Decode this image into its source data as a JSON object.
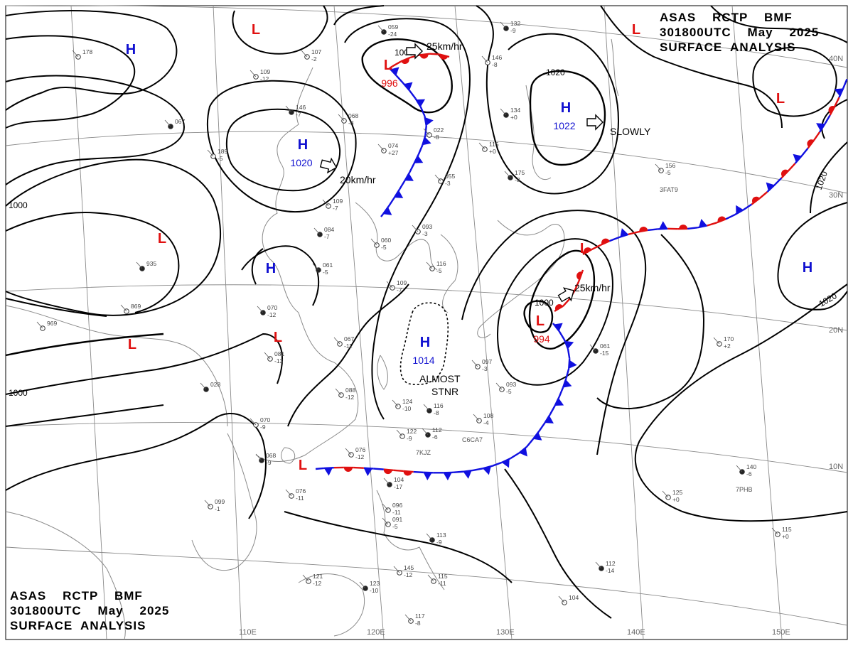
{
  "header": {
    "line1": "ASAS    RCTP    BMF",
    "line2": "301800UTC    May    2025",
    "line3": "SURFACE  ANALYSIS"
  },
  "colors": {
    "high": "#1010d0",
    "low": "#e01010",
    "warm_front": "#e01010",
    "cold_front": "#1010e0",
    "isobar": "#000000",
    "grid": "#8a8a8a",
    "coast": "#8a8a8a"
  },
  "grid_labels": {
    "lon": [
      "110E",
      "120E",
      "130E",
      "140E",
      "150E"
    ],
    "lat": [
      "40N",
      "30N",
      "20N",
      "10N"
    ]
  },
  "pressure_systems": [
    {
      "type": "H",
      "value": ""
    },
    {
      "type": "H",
      "value": "1020"
    },
    {
      "type": "H",
      "value": ""
    },
    {
      "type": "H",
      "value": "1022"
    },
    {
      "type": "H",
      "value": "1014"
    },
    {
      "type": "H",
      "value": ""
    },
    {
      "type": "L",
      "value": ""
    },
    {
      "type": "L",
      "value": "996"
    },
    {
      "type": "L",
      "value": ""
    },
    {
      "type": "L",
      "value": ""
    },
    {
      "type": "L",
      "value": ""
    },
    {
      "type": "L",
      "value": ""
    },
    {
      "type": "L",
      "value": "994"
    },
    {
      "type": "L",
      "value": ""
    },
    {
      "type": "L",
      "value": ""
    },
    {
      "type": "L",
      "value": ""
    }
  ],
  "isobar_labels": [
    "1000",
    "1000",
    "1020",
    "1000",
    "1000",
    "1020",
    "1020"
  ],
  "motion": [
    "25km/hr",
    "20km/hr",
    "SLOWLY",
    "25km/hr"
  ],
  "annotations": [
    "ALMOST",
    "STNR"
  ],
  "stations": [
    {
      "top": "059",
      "bot": "-24"
    },
    {
      "top": "107",
      "bot": "-2"
    },
    {
      "top": "178",
      "bot": ""
    },
    {
      "top": "132",
      "bot": "-9"
    },
    {
      "top": "146",
      "bot": "-8"
    },
    {
      "top": "109",
      "bot": "-12"
    },
    {
      "top": "146",
      "bot": "-7"
    },
    {
      "top": "068",
      "bot": "-8"
    },
    {
      "top": "022",
      "bot": "-8"
    },
    {
      "top": "067",
      "bot": ""
    },
    {
      "top": "074",
      "bot": "+27"
    },
    {
      "top": "115",
      "bot": "+0"
    },
    {
      "top": "134",
      "bot": "+0"
    },
    {
      "top": "156",
      "bot": "-5"
    },
    {
      "top": "189",
      "bot": "-5"
    },
    {
      "top": "175",
      "bot": "-8"
    },
    {
      "top": "055",
      "bot": "-3"
    },
    {
      "top": "109",
      "bot": "-7"
    },
    {
      "top": "084",
      "bot": "-7"
    },
    {
      "top": "093",
      "bot": "-3"
    },
    {
      "top": "060",
      "bot": "-5"
    },
    {
      "top": "061",
      "bot": "-5"
    },
    {
      "top": "116",
      "bot": "-5"
    },
    {
      "top": "109",
      "bot": "-7"
    },
    {
      "top": "935",
      "bot": ""
    },
    {
      "top": "869",
      "bot": ""
    },
    {
      "top": "969",
      "bot": ""
    },
    {
      "top": "070",
      "bot": "-12"
    },
    {
      "top": "067",
      "bot": "-11"
    },
    {
      "top": "081",
      "bot": "-13"
    },
    {
      "top": "028",
      "bot": ""
    },
    {
      "top": "088",
      "bot": "-12"
    },
    {
      "top": "124",
      "bot": "-10"
    },
    {
      "top": "116",
      "bot": "-8"
    },
    {
      "top": "097",
      "bot": "-3"
    },
    {
      "top": "093",
      "bot": "-5"
    },
    {
      "top": "061",
      "bot": "-15"
    },
    {
      "top": "170",
      "bot": "+2"
    },
    {
      "top": "108",
      "bot": "-4"
    },
    {
      "top": "112",
      "bot": "-6"
    },
    {
      "top": "122",
      "bot": "-9"
    },
    {
      "top": "076",
      "bot": "-12"
    },
    {
      "top": "068",
      "bot": "-9"
    },
    {
      "top": "076",
      "bot": "-11"
    },
    {
      "top": "099",
      "bot": "-1"
    },
    {
      "top": "104",
      "bot": "-17"
    },
    {
      "top": "096",
      "bot": "-11"
    },
    {
      "top": "091",
      "bot": "-5"
    },
    {
      "top": "113",
      "bot": "-9"
    },
    {
      "top": "145",
      "bot": "-12"
    },
    {
      "top": "121",
      "bot": "-12"
    },
    {
      "top": "123",
      "bot": "-10"
    },
    {
      "top": "115",
      "bot": "-11"
    },
    {
      "top": "117",
      "bot": "-8"
    },
    {
      "top": "112",
      "bot": "-14"
    },
    {
      "top": "104",
      "bot": ""
    },
    {
      "top": "125",
      "bot": "+0"
    },
    {
      "top": "140",
      "bot": "-6"
    },
    {
      "top": "115",
      "bot": "+0"
    },
    {
      "top": "070",
      "bot": "-9"
    }
  ],
  "ship_ids": [
    "3FAT9",
    "7KJZ",
    "C6CA7",
    "7PHB"
  ]
}
